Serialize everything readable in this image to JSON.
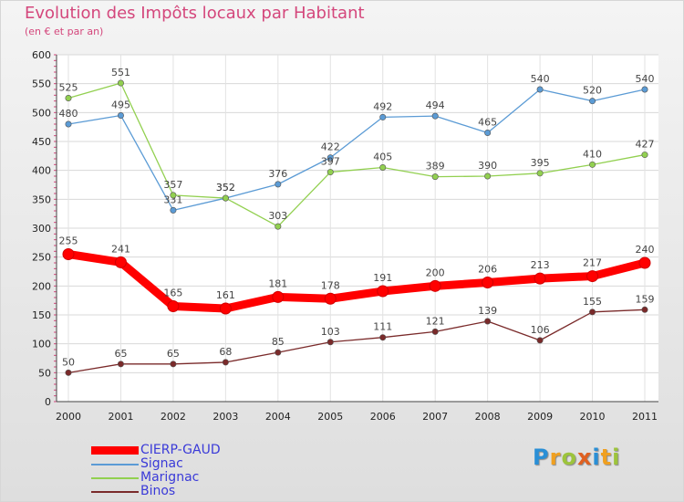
{
  "title": "Evolution des Impôts locaux par Habitant",
  "subtitle": "(en € et par an)",
  "logo": {
    "letters": [
      {
        "ch": "P",
        "color": "#2a8fd6"
      },
      {
        "ch": "r",
        "color": "#f0a020"
      },
      {
        "ch": "o",
        "color": "#9dc43c"
      },
      {
        "ch": "x",
        "color": "#e06020"
      },
      {
        "ch": "i",
        "color": "#2a8fd6"
      },
      {
        "ch": "t",
        "color": "#f0a020"
      },
      {
        "ch": "i",
        "color": "#9dc43c"
      }
    ]
  },
  "chart_data": {
    "type": "line",
    "x": [
      "2000",
      "2001",
      "2002",
      "2003",
      "2004",
      "2005",
      "2006",
      "2007",
      "2008",
      "2009",
      "2010",
      "2011"
    ],
    "ylim": [
      0,
      600
    ],
    "yticks": [
      0,
      50,
      100,
      150,
      200,
      250,
      300,
      350,
      400,
      450,
      500,
      550,
      600
    ],
    "grid": true,
    "legend_position": "bottom-left",
    "series": [
      {
        "name": "Signac",
        "color": "#5b9bd5",
        "values": [
          480,
          495,
          331,
          352,
          376,
          422,
          492,
          494,
          465,
          540,
          520,
          540
        ]
      },
      {
        "name": "Marignac",
        "color": "#92d050",
        "values": [
          525,
          551,
          357,
          352,
          303,
          397,
          405,
          389,
          390,
          395,
          410,
          427
        ]
      },
      {
        "name": "Binos",
        "color": "#7a2a2a",
        "values": [
          50,
          65,
          65,
          68,
          85,
          103,
          111,
          121,
          139,
          106,
          155,
          159
        ]
      },
      {
        "name": "CIERP-GAUD",
        "color": "#ff0000",
        "values": [
          255,
          241,
          165,
          161,
          181,
          178,
          191,
          200,
          206,
          213,
          217,
          240
        ]
      }
    ]
  },
  "legend": [
    {
      "name": "CIERP-GAUD",
      "color": "#ff0000"
    },
    {
      "name": "Signac",
      "color": "#5b9bd5"
    },
    {
      "name": "Marignac",
      "color": "#92d050"
    },
    {
      "name": "Binos",
      "color": "#7a2a2a"
    }
  ]
}
